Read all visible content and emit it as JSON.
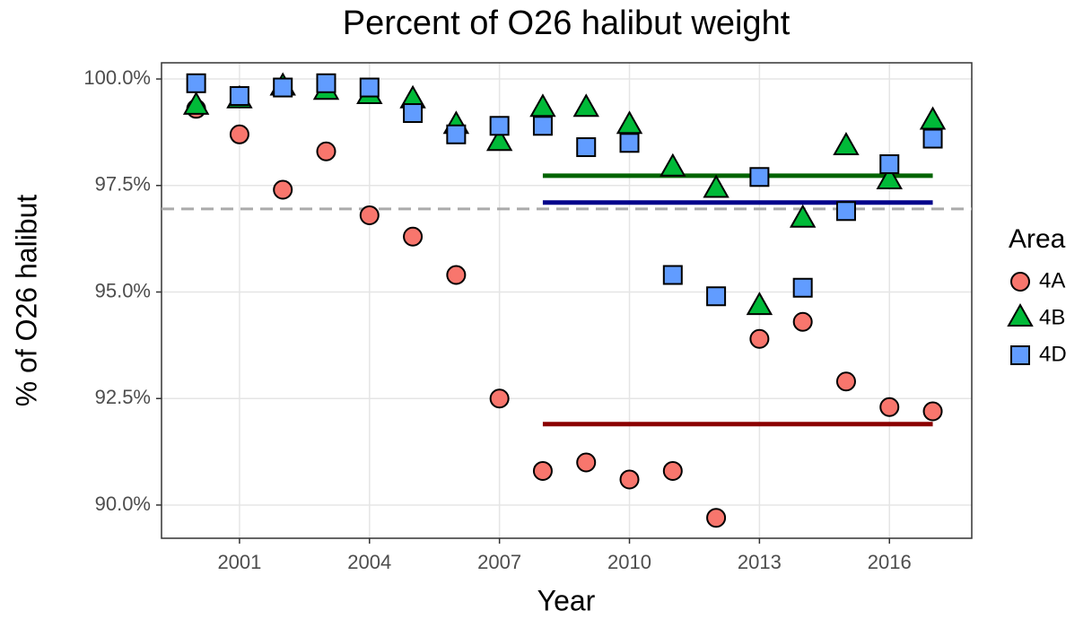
{
  "chart_data": {
    "type": "scatter",
    "title": "Percent of O26 halibut weight",
    "x_label": "Year",
    "y_label": "% of O26 halibut",
    "xlim": [
      1999.2,
      2017.9
    ],
    "ylim": [
      89.22,
      100.38
    ],
    "xticks": [
      2001,
      2004,
      2007,
      2010,
      2013,
      2016
    ],
    "yticks": [
      {
        "value": 90,
        "label": "90.0%"
      },
      {
        "value": 92.5,
        "label": "92.5%"
      },
      {
        "value": 95,
        "label": "95.0%"
      },
      {
        "value": 97.5,
        "label": "97.5%"
      },
      {
        "value": 100,
        "label": "100.0%"
      }
    ],
    "grid": true,
    "legend_title": "Area",
    "legend_position": "right",
    "x": [
      2000,
      2001,
      2002,
      2003,
      2004,
      2005,
      2006,
      2007,
      2008,
      2009,
      2010,
      2011,
      2012,
      2013,
      2014,
      2015,
      2016,
      2017
    ],
    "series": [
      {
        "name": "4A",
        "color": "#f8766d",
        "marker": "circle",
        "values": [
          99.3,
          98.7,
          97.4,
          98.3,
          96.8,
          96.3,
          95.4,
          92.5,
          90.8,
          91.0,
          90.6,
          90.8,
          89.7,
          93.9,
          94.3,
          92.9,
          92.3,
          92.2
        ]
      },
      {
        "name": "4B",
        "color": "#00ba38",
        "marker": "triangle",
        "values": [
          99.35,
          99.5,
          99.8,
          99.7,
          99.6,
          99.5,
          98.9,
          98.5,
          99.3,
          99.3,
          98.9,
          97.9,
          97.4,
          94.65,
          96.7,
          98.4,
          97.6,
          99.0
        ]
      },
      {
        "name": "4D",
        "color": "#619cff",
        "marker": "square",
        "values": [
          99.9,
          99.6,
          99.8,
          99.9,
          99.8,
          99.2,
          98.7,
          98.9,
          98.9,
          98.4,
          98.5,
          95.4,
          94.9,
          97.7,
          95.1,
          96.9,
          98.0,
          98.6
        ]
      }
    ],
    "reference_lines": [
      {
        "value": 96.95,
        "color": "#aaaaaa",
        "dashed": true
      },
      {
        "value": 97.73,
        "x": [
          2008,
          2017
        ],
        "color": "#006400"
      },
      {
        "value": 97.1,
        "x": [
          2008,
          2017
        ],
        "color": "#00008b"
      },
      {
        "value": 91.9,
        "x": [
          2008,
          2017
        ],
        "color": "#8b0000"
      }
    ]
  }
}
